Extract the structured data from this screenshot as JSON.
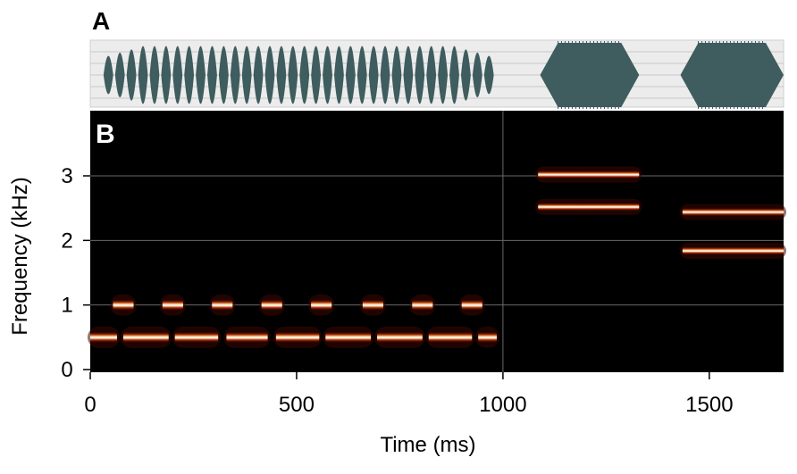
{
  "panels": {
    "a_label": "A",
    "b_label": "B"
  },
  "chart_data": [
    {
      "type": "area",
      "panel": "A",
      "description_label": "",
      "waveform_color": "#3f5c5e",
      "background_color": "#ececec",
      "x_range_ms": [
        0,
        1680
      ],
      "segments": [
        {
          "kind": "pulsed",
          "start_ms": 30,
          "end_ms": 980,
          "pulses": 34,
          "amplitude": 0.9
        },
        {
          "kind": "continuous",
          "start_ms": 1090,
          "end_ms": 1330,
          "amplitude": 1.0
        },
        {
          "kind": "continuous",
          "start_ms": 1430,
          "end_ms": 1680,
          "amplitude": 1.0
        }
      ]
    },
    {
      "type": "heatmap",
      "panel": "B",
      "title": "",
      "xlabel": "Time (ms)",
      "ylabel": "Frequency (kHz)",
      "xlim": [
        0,
        1680
      ],
      "ylim": [
        0,
        3.95
      ],
      "xticks": [
        0,
        500,
        1000,
        1500
      ],
      "xtick_labels": [
        "0",
        "500",
        "1000",
        "1500"
      ],
      "yticks": [
        0,
        1,
        2,
        3
      ],
      "ytick_labels": [
        "0",
        "1",
        "2",
        "3"
      ],
      "grid": true,
      "background_color": "#000000",
      "series": [
        {
          "component": "f0-segments",
          "freq_khz": 0.5,
          "intervals_ms": [
            [
              0,
              65
            ],
            [
              80,
              190
            ],
            [
              205,
              310
            ],
            [
              330,
              430
            ],
            [
              450,
              555
            ],
            [
              570,
              680
            ],
            [
              695,
              805
            ],
            [
              820,
              925
            ],
            [
              940,
              985
            ]
          ]
        },
        {
          "component": "harmonic-blips",
          "freq_khz": 1.0,
          "intervals_ms": [
            [
              55,
              105
            ],
            [
              175,
              225
            ],
            [
              295,
              345
            ],
            [
              415,
              465
            ],
            [
              535,
              585
            ],
            [
              660,
              710
            ],
            [
              780,
              830
            ],
            [
              900,
              950
            ]
          ]
        },
        {
          "component": "upper-tone-1",
          "freq_khz": 3.02,
          "intervals_ms": [
            [
              1085,
              1330
            ]
          ]
        },
        {
          "component": "lower-tone-1",
          "freq_khz": 2.52,
          "intervals_ms": [
            [
              1085,
              1330
            ]
          ]
        },
        {
          "component": "upper-tone-2",
          "freq_khz": 2.44,
          "intervals_ms": [
            [
              1435,
              1680
            ]
          ]
        },
        {
          "component": "lower-tone-2",
          "freq_khz": 1.84,
          "intervals_ms": [
            [
              1435,
              1680
            ]
          ]
        }
      ]
    }
  ]
}
